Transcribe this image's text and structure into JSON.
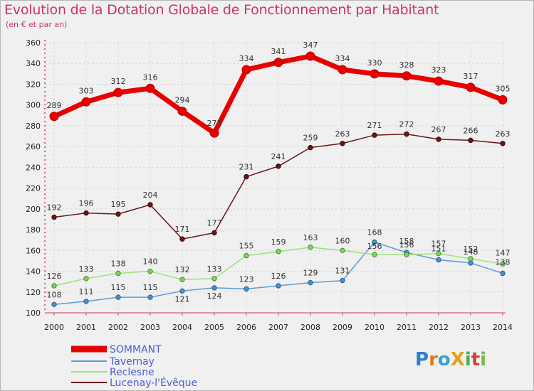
{
  "header": {
    "title": "Evolution de la Dotation Globale de Fonctionnement par Habitant",
    "subtitle": "(en € et par an)"
  },
  "logo": {
    "text": "ProXiti"
  },
  "colors": {
    "SOMMANT": "#e80000",
    "Tavernay": "#5d9bd6",
    "Reclesne": "#9be27a",
    "Lucenay-l'Évêque": "#6b1515",
    "title": "#cc3366",
    "legend_text": "#4a5fd0"
  },
  "chart_data": {
    "type": "line",
    "title": "Evolution de la Dotation Globale de Fonctionnement par Habitant",
    "subtitle": "(en € et par an)",
    "x": [
      "2000",
      "2001",
      "2002",
      "2003",
      "2004",
      "2005",
      "2006",
      "2007",
      "2008",
      "2009",
      "2010",
      "2011",
      "2012",
      "2013",
      "2014"
    ],
    "ylim": [
      100,
      360
    ],
    "yticks": [
      100,
      120,
      140,
      160,
      180,
      200,
      220,
      240,
      260,
      280,
      300,
      320,
      340,
      360
    ],
    "grid": true,
    "legend_position": "bottom-left",
    "series": [
      {
        "name": "SOMMANT",
        "values": [
          289,
          303,
          312,
          316,
          294,
          273,
          334,
          341,
          347,
          334,
          330,
          328,
          323,
          317,
          305
        ],
        "labels": [
          "289",
          "303",
          "312",
          "316",
          "294",
          "273",
          "334",
          "341",
          "347",
          "334",
          "330",
          "328",
          "323",
          "317",
          "305"
        ]
      },
      {
        "name": "Tavernay",
        "values": [
          108,
          111,
          115,
          115,
          121,
          124,
          123,
          126,
          129,
          131,
          168,
          158,
          151,
          148,
          138
        ],
        "labels": [
          "108",
          "111",
          "115",
          "115",
          "121",
          "124",
          "123",
          "126",
          "129",
          "131",
          "168",
          "158",
          "151",
          "148",
          "138"
        ]
      },
      {
        "name": "Reclesne",
        "values": [
          126,
          133,
          138,
          140,
          132,
          133,
          155,
          159,
          163,
          160,
          156,
          156,
          157,
          152,
          147
        ],
        "labels": [
          "126",
          "133",
          "138",
          "140",
          "132",
          "133",
          "155",
          "159",
          "163",
          "160",
          "156",
          "156",
          "157",
          "152",
          "147"
        ]
      },
      {
        "name": "Lucenay-l'Évêque",
        "values": [
          192,
          196,
          195,
          204,
          171,
          177,
          231,
          241,
          259,
          263,
          271,
          272,
          267,
          266,
          263
        ],
        "labels": [
          "192",
          "196",
          "195",
          "204",
          "171",
          "177",
          "231",
          "241",
          "259",
          "263",
          "271",
          "272",
          "267",
          "266",
          "263"
        ]
      }
    ]
  }
}
